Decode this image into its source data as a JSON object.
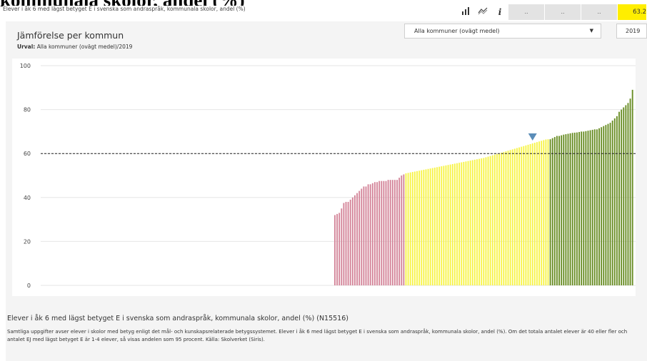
{
  "page_heading": "kommunala skolor, andel (%)",
  "header": {
    "indicator_title": "Elever i åk 6 med lägst betyget E i svenska som andraspråk, kommunala skolor, andel (%)",
    "cells": [
      "..",
      "..",
      ".."
    ],
    "value": "63.2",
    "icons": [
      "bar-chart-icon",
      "trend-line-icon",
      "info-icon"
    ]
  },
  "panel": {
    "title": "Jämförelse per kommun",
    "selection_label": "Urval:",
    "selection_value": "Alla kommuner (ovägt medel)/2019"
  },
  "controls": {
    "comparison_select": "Alla kommuner (ovägt medel)",
    "year_select": "2019"
  },
  "colors": {
    "red": "#d4869a",
    "yellow": "#f7f44a",
    "green": "#6a8e26",
    "marker": "#5b8db8",
    "panel_bg": "#f4f4f4"
  },
  "chart_data": {
    "type": "bar",
    "ylim": [
      0,
      100
    ],
    "y_ticks": [
      "0",
      "20",
      "40",
      "60",
      "80",
      "100"
    ],
    "reference_line": 60,
    "highlight_index": 89,
    "series": [
      {
        "color_group": "red",
        "values": [
          32,
          32.5,
          33,
          35,
          37.5,
          38,
          38,
          39,
          40,
          41,
          42,
          43,
          44,
          45,
          45,
          46,
          46,
          46.5,
          47,
          47,
          47.5,
          47.5,
          47.5,
          47.5,
          48,
          48,
          48,
          48,
          48,
          49,
          50,
          50.5
        ]
      },
      {
        "color_group": "yellow",
        "values": [
          51,
          51.2,
          51.4,
          51.6,
          51.8,
          52,
          52.2,
          52.4,
          52.6,
          52.8,
          53,
          53.2,
          53.4,
          53.6,
          53.8,
          54,
          54.2,
          54.4,
          54.6,
          54.8,
          55,
          55.2,
          55.4,
          55.6,
          55.8,
          56,
          56.2,
          56.4,
          56.6,
          56.8,
          57,
          57.2,
          57.4,
          57.6,
          57.8,
          58,
          58.3,
          58.6,
          58.9,
          59.2,
          59.5,
          59.8,
          60.1,
          60.4,
          60.7,
          61,
          61.3,
          61.6,
          61.9,
          62.2,
          62.5,
          62.8,
          63.1,
          63.4,
          63.7,
          64,
          64.3,
          64.6,
          64.9,
          65.2,
          65.5,
          65.8,
          66.1,
          66.4,
          66.5
        ]
      },
      {
        "color_group": "green",
        "values": [
          66.5,
          67,
          67.5,
          68,
          68,
          68.3,
          68.6,
          68.8,
          69,
          69.2,
          69.4,
          69.5,
          69.6,
          69.8,
          70,
          70,
          70.2,
          70.4,
          70.6,
          70.8,
          71,
          71,
          71.5,
          72,
          72.5,
          73,
          73.5,
          74,
          75,
          76,
          77,
          79,
          80,
          81,
          82,
          83,
          85,
          89
        ]
      }
    ]
  },
  "footer": {
    "title": "Elever i åk 6 med lägst betyget E i svenska som andraspråk, kommunala skolor, andel (%) (N15516)",
    "text": "Samtliga uppgifter avser elever i skolor med betyg enligt det mål- och kunskapsrelaterade betygssystemet. Elever i åk 6 med lägst betyget E i svenska som andraspråk, kommunala skolor, andel (%). Om det totala antalet elever är 40 eller fler och antalet EJ med lägst betyget E är 1-4 elever, så visas andelen som 95 procent. Källa: Skolverket (Siris)."
  }
}
